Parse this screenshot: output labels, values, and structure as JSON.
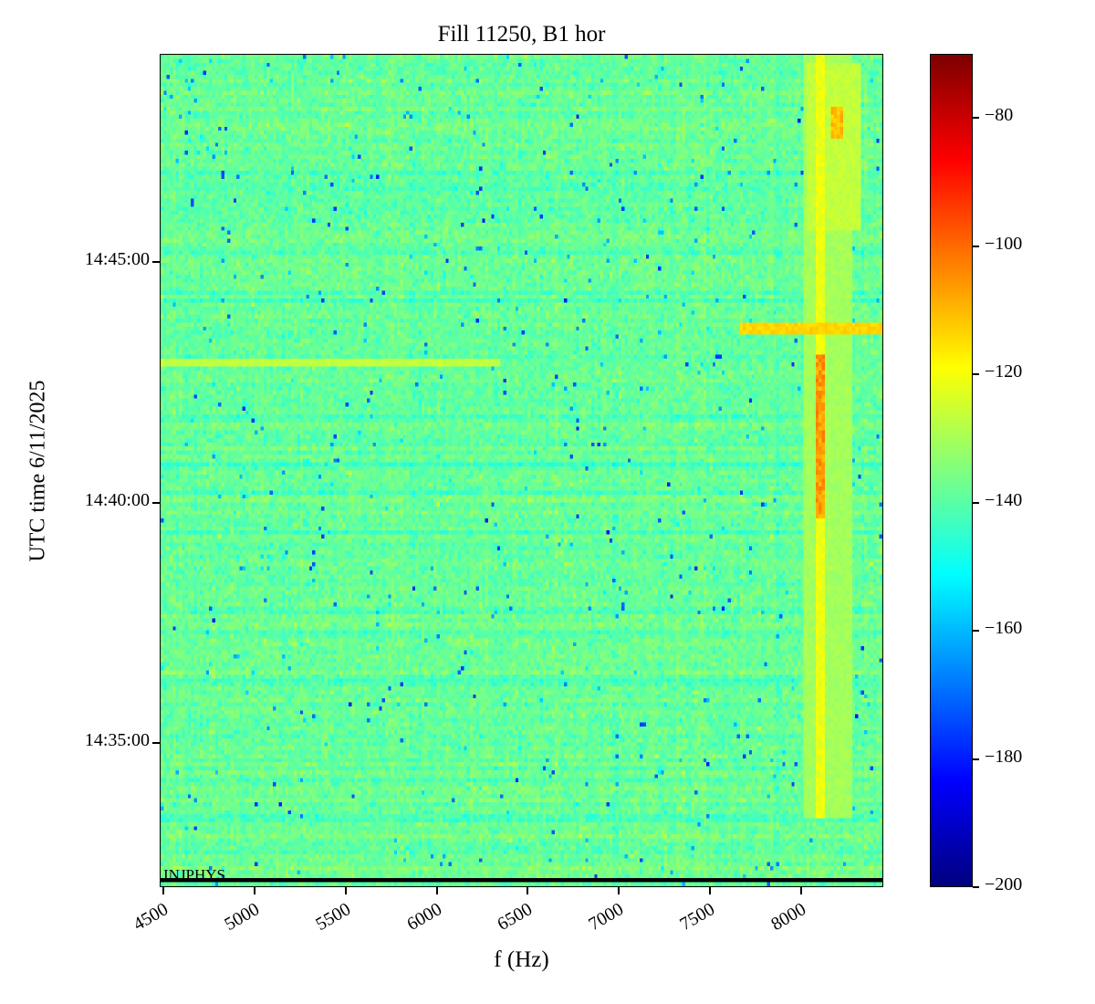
{
  "chart_data": {
    "type": "heatmap",
    "title": "Fill 11250, B1 hor",
    "xlabel": "f (Hz)",
    "ylabel": "UTC time 6/11/2025",
    "x_range_hz": [
      4480,
      8450
    ],
    "x_ticks": [
      4500,
      5000,
      5500,
      6000,
      6500,
      7000,
      7500,
      8000
    ],
    "time_range": [
      "14:32:00",
      "14:49:20"
    ],
    "y_ticks": [
      "14:35:00",
      "14:40:00",
      "14:45:00"
    ],
    "colorbar": {
      "colormap": "jet",
      "vmin": -200,
      "vmax": -70,
      "tick_values": [
        -80,
        -100,
        -120,
        -140,
        -160,
        -180,
        -200
      ],
      "tick_labels": [
        "−80",
        "−100",
        "−120",
        "−140",
        "−160",
        "−180",
        "−200"
      ]
    },
    "background_level_db": -138,
    "noise_sigma_db": 2.8,
    "annotation": "INJPHYS",
    "features": [
      {
        "name": "narrow-vertical-line",
        "f_hz": [
          8085,
          8135
        ],
        "time": [
          "14:33:25",
          "14:49:20"
        ],
        "level_db": -122,
        "jitter_db": 5
      },
      {
        "name": "vertical-halo",
        "f_hz": [
          8010,
          8290
        ],
        "time": [
          "14:33:25",
          "14:49:20"
        ],
        "level_db": -131,
        "jitter_db": 4
      },
      {
        "name": "hot-core",
        "f_hz": [
          8088,
          8128
        ],
        "time": [
          "14:39:40",
          "14:43:05"
        ],
        "level_db": -108,
        "jitter_db": 11
      },
      {
        "name": "top-hot-spot",
        "f_hz": [
          8170,
          8240
        ],
        "time": [
          "14:47:35",
          "14:48:15"
        ],
        "level_db": -112,
        "jitter_db": 9
      },
      {
        "name": "faint-horizontal-streak",
        "f_hz": [
          4480,
          6350
        ],
        "time": [
          "14:42:48",
          "14:43:00"
        ],
        "level_db": -127,
        "jitter_db": 3
      },
      {
        "name": "orange-horizontal-streak",
        "f_hz": [
          7660,
          8450
        ],
        "time": [
          "14:43:28",
          "14:43:44"
        ],
        "level_db": -114,
        "jitter_db": 4
      },
      {
        "name": "top-right-elevated-band",
        "f_hz": [
          8040,
          8330
        ],
        "time": [
          "14:45:40",
          "14:49:10"
        ],
        "level_db": -127,
        "jitter_db": 4
      },
      {
        "name": "injphys-boundary-line",
        "f_hz": [
          4480,
          8450
        ],
        "time": [
          "14:32:05",
          "14:32:10"
        ],
        "level_db": -210,
        "jitter_db": 0
      }
    ]
  }
}
